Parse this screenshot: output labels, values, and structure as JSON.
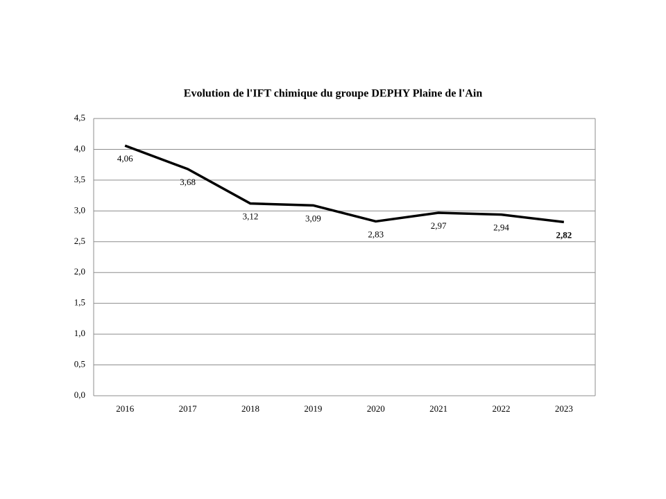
{
  "chart_data": {
    "type": "line",
    "title": "Evolution de l'IFT chimique du groupe DEPHY Plaine de l'Ain",
    "categories": [
      "2016",
      "2017",
      "2018",
      "2019",
      "2020",
      "2021",
      "2022",
      "2023"
    ],
    "series": [
      {
        "name": "IFT chimique",
        "color": "#000000",
        "values": [
          4.06,
          3.68,
          3.12,
          3.09,
          2.83,
          2.97,
          2.94,
          2.82
        ],
        "value_labels": [
          "4,06",
          "3,68",
          "3,12",
          "3,09",
          "2,83",
          "2,97",
          "2,94",
          "2,82"
        ]
      }
    ],
    "ylim": [
      0,
      4.5
    ],
    "yticks": [
      {
        "value": 0,
        "label": "0,0"
      },
      {
        "value": 0.5,
        "label": "0,5"
      },
      {
        "value": 1,
        "label": "1,0"
      },
      {
        "value": 1.5,
        "label": "1,5"
      },
      {
        "value": 2,
        "label": "2,0"
      },
      {
        "value": 2.5,
        "label": "2,5"
      },
      {
        "value": 3,
        "label": "3,0"
      },
      {
        "value": 3.5,
        "label": "3,5"
      },
      {
        "value": 4,
        "label": "4,0"
      },
      {
        "value": 4.5,
        "label": "4,5"
      }
    ],
    "grid": true
  }
}
